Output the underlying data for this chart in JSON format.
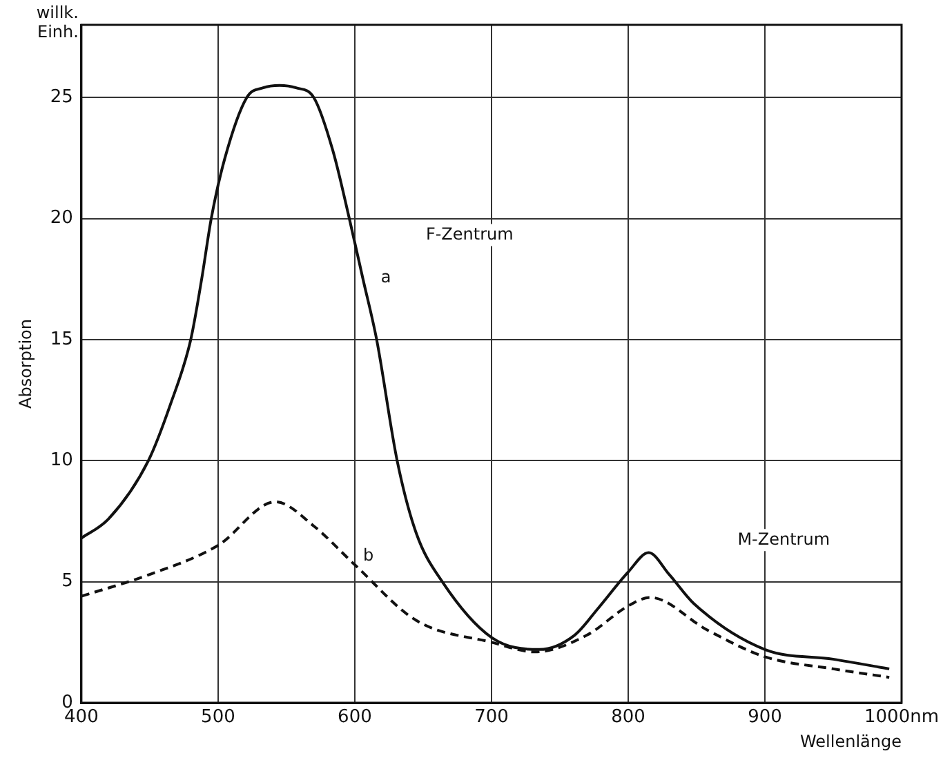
{
  "chart_data": {
    "type": "line",
    "xlabel": "Wellenlänge",
    "ylabel": "Absorption",
    "xlim": [
      400,
      1000
    ],
    "xticks": [
      400,
      500,
      600,
      700,
      800,
      900,
      {
        "value": 1000,
        "label": "1000nm"
      }
    ],
    "ylim": [
      0,
      28
    ],
    "yticks": [
      0,
      5,
      10,
      15,
      20,
      25
    ],
    "grid": true,
    "legend": false,
    "marker": "none",
    "series": [
      {
        "color": "#111111",
        "line_style": "solid",
        "x": [
          400,
          420,
          449,
          465,
          480,
          488,
          495,
          505,
          521,
          533,
          545,
          557,
          570,
          584,
          596,
          606,
          616,
          631,
          645,
          664,
          700,
          735,
          761,
          778,
          800,
          815,
          830,
          848,
          900,
          950,
          991
        ],
        "values": [
          6.8,
          7.6,
          10,
          12.3,
          15,
          17.5,
          20,
          22.5,
          25,
          25.4,
          25.5,
          25.4,
          25,
          22.8,
          20,
          17.5,
          15,
          10,
          7,
          5,
          2.7,
          2.2,
          2.8,
          3.9,
          5.4,
          6.2,
          5.3,
          4.1,
          2.2,
          1.8,
          1.4
        ]
      },
      {
        "color": "#111111",
        "line_style": "dashed",
        "x": [
          400,
          450,
          500,
          542,
          570,
          600,
          645,
          700,
          732,
          770,
          800,
          816,
          858,
          900,
          950,
          991
        ],
        "values": [
          4.4,
          5.3,
          6.5,
          8.3,
          7.3,
          5.7,
          3.4,
          2.5,
          2.1,
          2.8,
          4.0,
          4.35,
          3.0,
          1.9,
          1.4,
          1.05
        ]
      }
    ],
    "annotations": [
      "willk. Einh.",
      "F-Zentrum",
      {
        "text": "a",
        "x": 613,
        "y": 17.2
      },
      {
        "text": "b",
        "x": 600,
        "y": 5.7
      },
      "M-Zentrum"
    ]
  }
}
